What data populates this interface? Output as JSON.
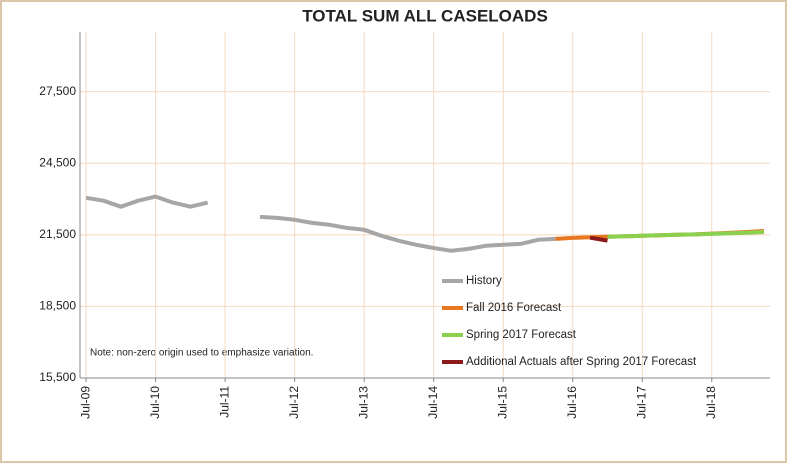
{
  "chart_data": {
    "type": "line",
    "title": "TOTAL SUM ALL CASELOADS",
    "annotation": "Note: non-zero origin used to emphasize variation.",
    "categories": [
      "Jul-09",
      null,
      null,
      null,
      "Jul-10",
      null,
      null,
      null,
      "Jul-11",
      null,
      null,
      null,
      "Jul-12",
      null,
      null,
      null,
      "Jul-13",
      null,
      null,
      null,
      "Jul-14",
      null,
      null,
      null,
      "Jul-15",
      null,
      null,
      null,
      "Jul-16",
      null,
      null,
      null,
      "Jul-17",
      null,
      null,
      null,
      "Jul-18",
      null,
      null,
      null
    ],
    "series": [
      {
        "name": "History",
        "color": "#a6a6a6",
        "values": [
          23050,
          22930,
          22680,
          22930,
          23100,
          22850,
          22680,
          22850,
          null,
          null,
          22250,
          22210,
          22130,
          22000,
          21920,
          21790,
          21710,
          21460,
          21250,
          21080,
          20950,
          20830,
          20910,
          21040,
          21080,
          21120,
          21290,
          21330,
          null,
          null,
          null,
          null,
          null,
          null,
          null,
          null,
          null,
          null,
          null,
          null
        ]
      },
      {
        "name": "Fall 2016 Forecast",
        "color": "#e87722",
        "values": [
          null,
          null,
          null,
          null,
          null,
          null,
          null,
          null,
          null,
          null,
          null,
          null,
          null,
          null,
          null,
          null,
          null,
          null,
          null,
          null,
          null,
          null,
          null,
          null,
          null,
          null,
          null,
          21330,
          21370,
          21400,
          21420,
          21440,
          21460,
          21480,
          21500,
          21520,
          21550,
          21580,
          21620,
          21660
        ]
      },
      {
        "name": "Spring 2017 Forecast",
        "color": "#8cd050",
        "values": [
          null,
          null,
          null,
          null,
          null,
          null,
          null,
          null,
          null,
          null,
          null,
          null,
          null,
          null,
          null,
          null,
          null,
          null,
          null,
          null,
          null,
          null,
          null,
          null,
          null,
          null,
          null,
          null,
          null,
          null,
          21420,
          21440,
          21460,
          21480,
          21500,
          21520,
          21540,
          21560,
          21590,
          21620
        ]
      },
      {
        "name": "Additional Actuals after Spring 2017 Forecast",
        "color": "#8b1a1a",
        "values": [
          null,
          null,
          null,
          null,
          null,
          null,
          null,
          null,
          null,
          null,
          null,
          null,
          null,
          null,
          null,
          null,
          null,
          null,
          null,
          null,
          null,
          null,
          null,
          null,
          null,
          null,
          null,
          null,
          null,
          21380,
          21260,
          null,
          null,
          null,
          null,
          null,
          null,
          null,
          null,
          null
        ]
      }
    ],
    "ylim": [
      15500,
      30000
    ],
    "yticks": [
      {
        "value": 15500,
        "label": "15,500"
      },
      {
        "value": 18500,
        "label": "18,500"
      },
      {
        "value": 21500,
        "label": "21,500"
      },
      {
        "value": 24500,
        "label": "24,500"
      },
      {
        "value": 27500,
        "label": "27,500"
      }
    ],
    "grid": true
  }
}
